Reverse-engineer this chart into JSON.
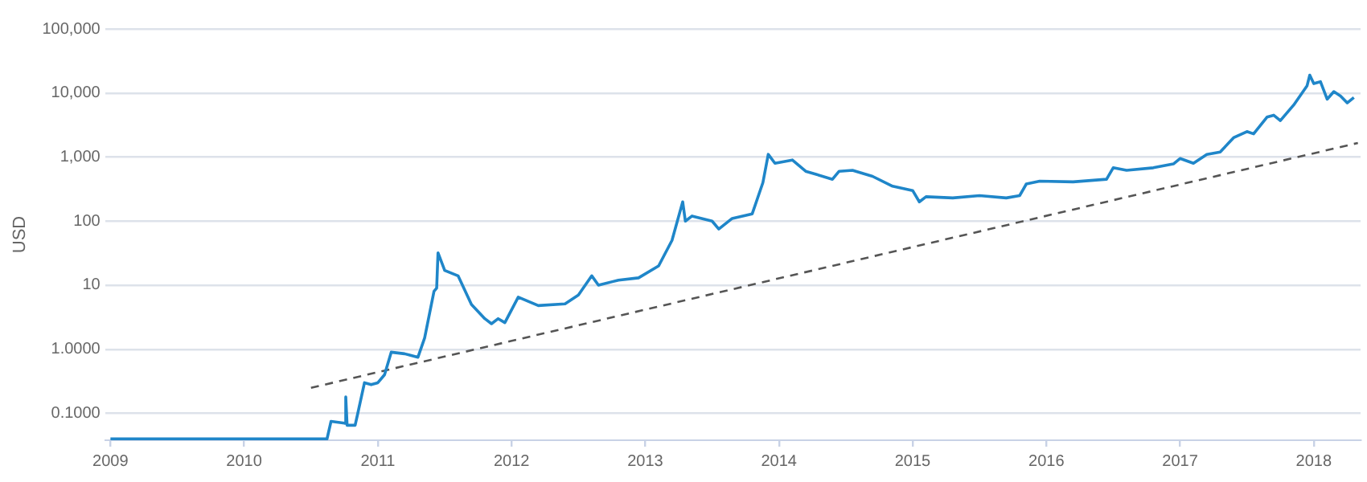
{
  "chart_data": {
    "type": "line",
    "ylabel": "USD",
    "log": "y",
    "grid": "y",
    "legend": false,
    "marker": "none",
    "xlim": [
      2008.96,
      2018.35
    ],
    "xticks": [
      2009,
      2010,
      2011,
      2012,
      2013,
      2014,
      2015,
      2016,
      2017,
      2018
    ],
    "ylim": [
      0.038,
      100000
    ],
    "yticks": [
      {
        "value": 0.1,
        "label": "0.1000"
      },
      {
        "value": 1,
        "label": "1.0000"
      },
      10,
      100,
      {
        "value": 1000,
        "label": "1,000"
      },
      {
        "value": 10000,
        "label": "10,000"
      },
      {
        "value": 100000,
        "label": "100,000"
      }
    ],
    "series": [
      {
        "color": "#1f86c9",
        "line_style": "solid",
        "x": [
          2009.0,
          2010.62,
          2010.65,
          2010.75,
          2010.76,
          2010.77,
          2010.83,
          2010.85,
          2010.9,
          2010.95,
          2011.0,
          2011.05,
          2011.1,
          2011.2,
          2011.3,
          2011.35,
          2011.42,
          2011.44,
          2011.45,
          2011.5,
          2011.6,
          2011.7,
          2011.8,
          2011.85,
          2011.9,
          2011.95,
          2012.05,
          2012.2,
          2012.4,
          2012.5,
          2012.6,
          2012.65,
          2012.8,
          2012.95,
          2013.1,
          2013.2,
          2013.28,
          2013.3,
          2013.35,
          2013.5,
          2013.55,
          2013.65,
          2013.8,
          2013.88,
          2013.92,
          2013.97,
          2014.1,
          2014.2,
          2014.4,
          2014.45,
          2014.55,
          2014.7,
          2014.85,
          2015.0,
          2015.05,
          2015.1,
          2015.3,
          2015.5,
          2015.7,
          2015.8,
          2015.85,
          2015.95,
          2016.2,
          2016.45,
          2016.5,
          2016.6,
          2016.8,
          2016.95,
          2017.0,
          2017.1,
          2017.2,
          2017.3,
          2017.4,
          2017.5,
          2017.55,
          2017.65,
          2017.7,
          2017.75,
          2017.85,
          2017.95,
          2017.97,
          2018.0,
          2018.05,
          2018.1,
          2018.15,
          2018.2,
          2018.25,
          2018.3
        ],
        "values": [
          0.04,
          0.04,
          0.075,
          0.07,
          0.18,
          0.065,
          0.065,
          0.1,
          0.3,
          0.28,
          0.3,
          0.4,
          0.9,
          0.85,
          0.75,
          1.5,
          8,
          9,
          32,
          17,
          14,
          5,
          3,
          2.5,
          3,
          2.6,
          6.5,
          4.8,
          5.1,
          7,
          14,
          10,
          12,
          13,
          20,
          50,
          200,
          100,
          120,
          100,
          75,
          110,
          130,
          400,
          1100,
          800,
          900,
          600,
          450,
          600,
          620,
          500,
          350,
          300,
          200,
          240,
          230,
          250,
          230,
          250,
          380,
          420,
          410,
          450,
          680,
          620,
          680,
          780,
          950,
          800,
          1100,
          1200,
          2000,
          2500,
          2300,
          4200,
          4500,
          3700,
          6500,
          13000,
          19000,
          14000,
          15000,
          8000,
          10500,
          9000,
          7000,
          8500
        ]
      },
      {
        "type": "line",
        "color": "#555555",
        "line_style": "dashed",
        "x": [
          2010.5,
          2018.33
        ],
        "values": [
          0.25,
          1660
        ]
      }
    ]
  }
}
